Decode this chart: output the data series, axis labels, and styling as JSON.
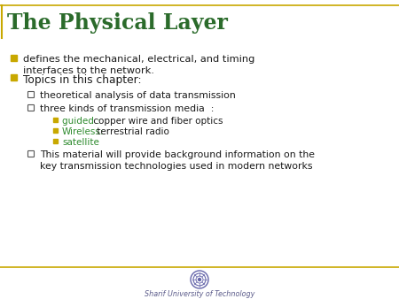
{
  "title": "The Physical Layer",
  "title_color": "#2B6B2B",
  "title_fontsize": 17,
  "bg_color": "#FFFFFF",
  "border_color": "#C8A800",
  "footer_text": "Sharif University of Technology",
  "footer_color": "#5B5B8A",
  "bullet_color": "#C8A800",
  "text_color": "#1A1A1A",
  "green_color": "#2E8B2E",
  "dark_gray": "#555555",
  "bullet1_line1": "defines the mechanical, electrical, and timing",
  "bullet1_line2": "interfaces to the network.",
  "bullet2": "Topics in this chapter:",
  "sub1": "theoretical analysis of data transmission",
  "sub2": "three kinds of transmission media  :",
  "sub2a_green": "guided :",
  "sub2a_rest": " copper wire and fiber optics",
  "sub2b_green": "Wireless:",
  "sub2b_rest": " terrestrial radio",
  "sub2c_green": "satellite",
  "sub3_line1": "This material will provide background information on the",
  "sub3_line2": "key transmission technologies used in modern networks"
}
